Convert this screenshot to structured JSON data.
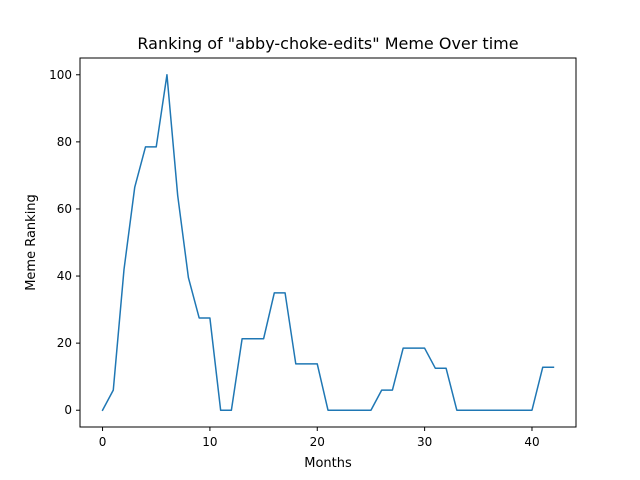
{
  "chart_data": {
    "type": "line",
    "title": "Ranking of \"abby-choke-edits\" Meme Over time",
    "xlabel": "Months",
    "ylabel": "Meme Ranking",
    "xlim": [
      -2.1,
      44.1
    ],
    "ylim": [
      -5,
      105
    ],
    "xticks": [
      0,
      10,
      20,
      30,
      40
    ],
    "yticks": [
      0,
      20,
      40,
      60,
      80,
      100
    ],
    "grid": false,
    "legend": "none",
    "series": [
      {
        "color": "#1f77b4",
        "x": [
          0,
          1,
          2,
          3,
          4,
          5,
          6,
          7,
          8,
          9,
          10,
          11,
          12,
          13,
          14,
          15,
          16,
          17,
          18,
          19,
          20,
          21,
          22,
          23,
          24,
          25,
          26,
          27,
          28,
          29,
          30,
          31,
          32,
          33,
          34,
          35,
          36,
          37,
          38,
          39,
          40,
          41,
          42
        ],
        "values": [
          0,
          6,
          42,
          66.5,
          78.5,
          78.5,
          100,
          64,
          39.5,
          27.5,
          27.5,
          0,
          0,
          21.3,
          21.3,
          21.3,
          35,
          35,
          13.8,
          13.8,
          13.8,
          0,
          0,
          0,
          0,
          0,
          6,
          6,
          18.5,
          18.5,
          18.5,
          12.5,
          12.5,
          0,
          0,
          0,
          0,
          0,
          0,
          0,
          0,
          12.8,
          12.8
        ]
      }
    ]
  }
}
